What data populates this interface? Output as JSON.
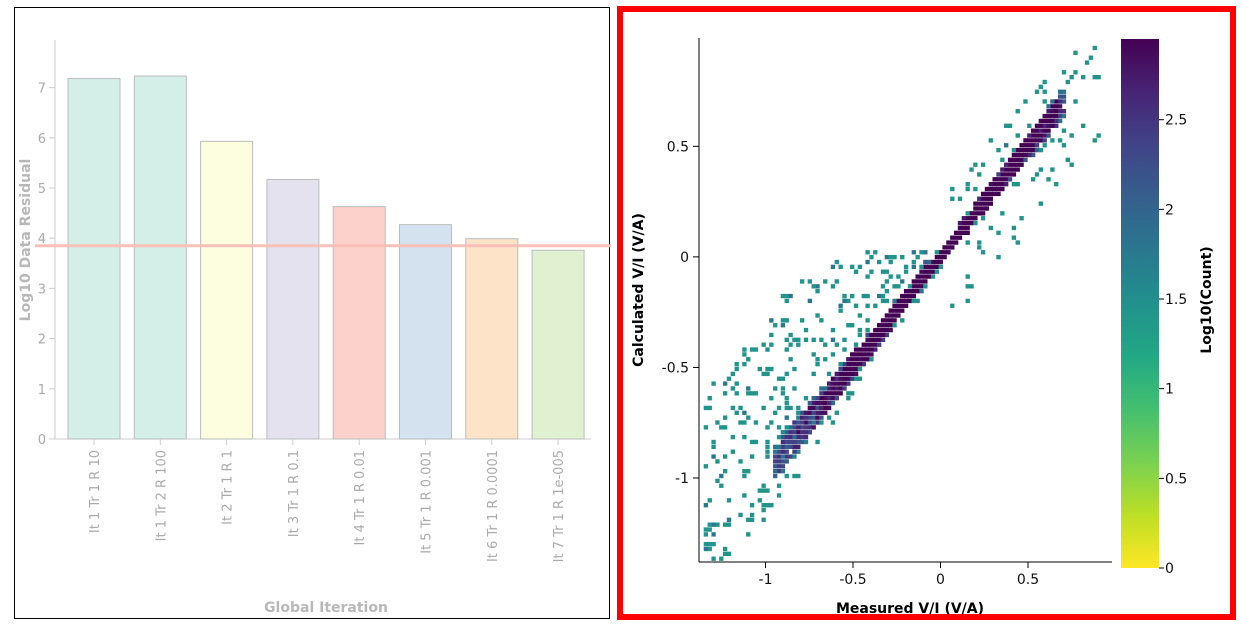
{
  "chart_data": [
    {
      "type": "bar",
      "xlabel": "Global Iteration",
      "ylabel": "Log10 Data Residual",
      "ylim": [
        0,
        7.8
      ],
      "yticks": [
        0,
        1,
        2,
        3,
        4,
        5,
        6,
        7
      ],
      "grid": false,
      "categories": [
        "It 1 Tr 1 R 10",
        "It 1 Tr 2 R 100",
        "It 2 Tr 1 R 1",
        "It 3 Tr 1 R 0.1",
        "It 4 Tr 1 R 0.01",
        "It 5 Tr 1 R 0.001",
        "It 6 Tr 1 R 0.0001",
        "It 7 Tr 1 R 1e-005"
      ],
      "values": [
        7.18,
        7.23,
        5.93,
        5.17,
        4.63,
        4.27,
        3.99,
        3.76
      ],
      "bar_colors": [
        "#d4eee8",
        "#d4eee8",
        "#fdfde0",
        "#e4e2ef",
        "#fcd1cc",
        "#d4e1ee",
        "#fde3c8",
        "#e2f0d2"
      ],
      "reference_line": {
        "y": 3.85,
        "color": "#f9c0b8"
      }
    },
    {
      "type": "heatmap",
      "xlabel": "Measured V/I (V/A)",
      "ylabel": "Calculated V/I (V/A)",
      "xlim": [
        -1.38,
        0.98
      ],
      "ylim": [
        -1.38,
        0.99
      ],
      "xticks": [
        -1,
        -0.5,
        0,
        0.5
      ],
      "yticks": [
        -1,
        -0.5,
        0,
        0.5
      ],
      "colorbar": {
        "label": "Log10(Count)",
        "range": [
          0,
          2.95
        ],
        "ticks": [
          0,
          0.5,
          1,
          1.5,
          2,
          2.5
        ],
        "colormap": "viridis-reversed"
      }
    }
  ]
}
